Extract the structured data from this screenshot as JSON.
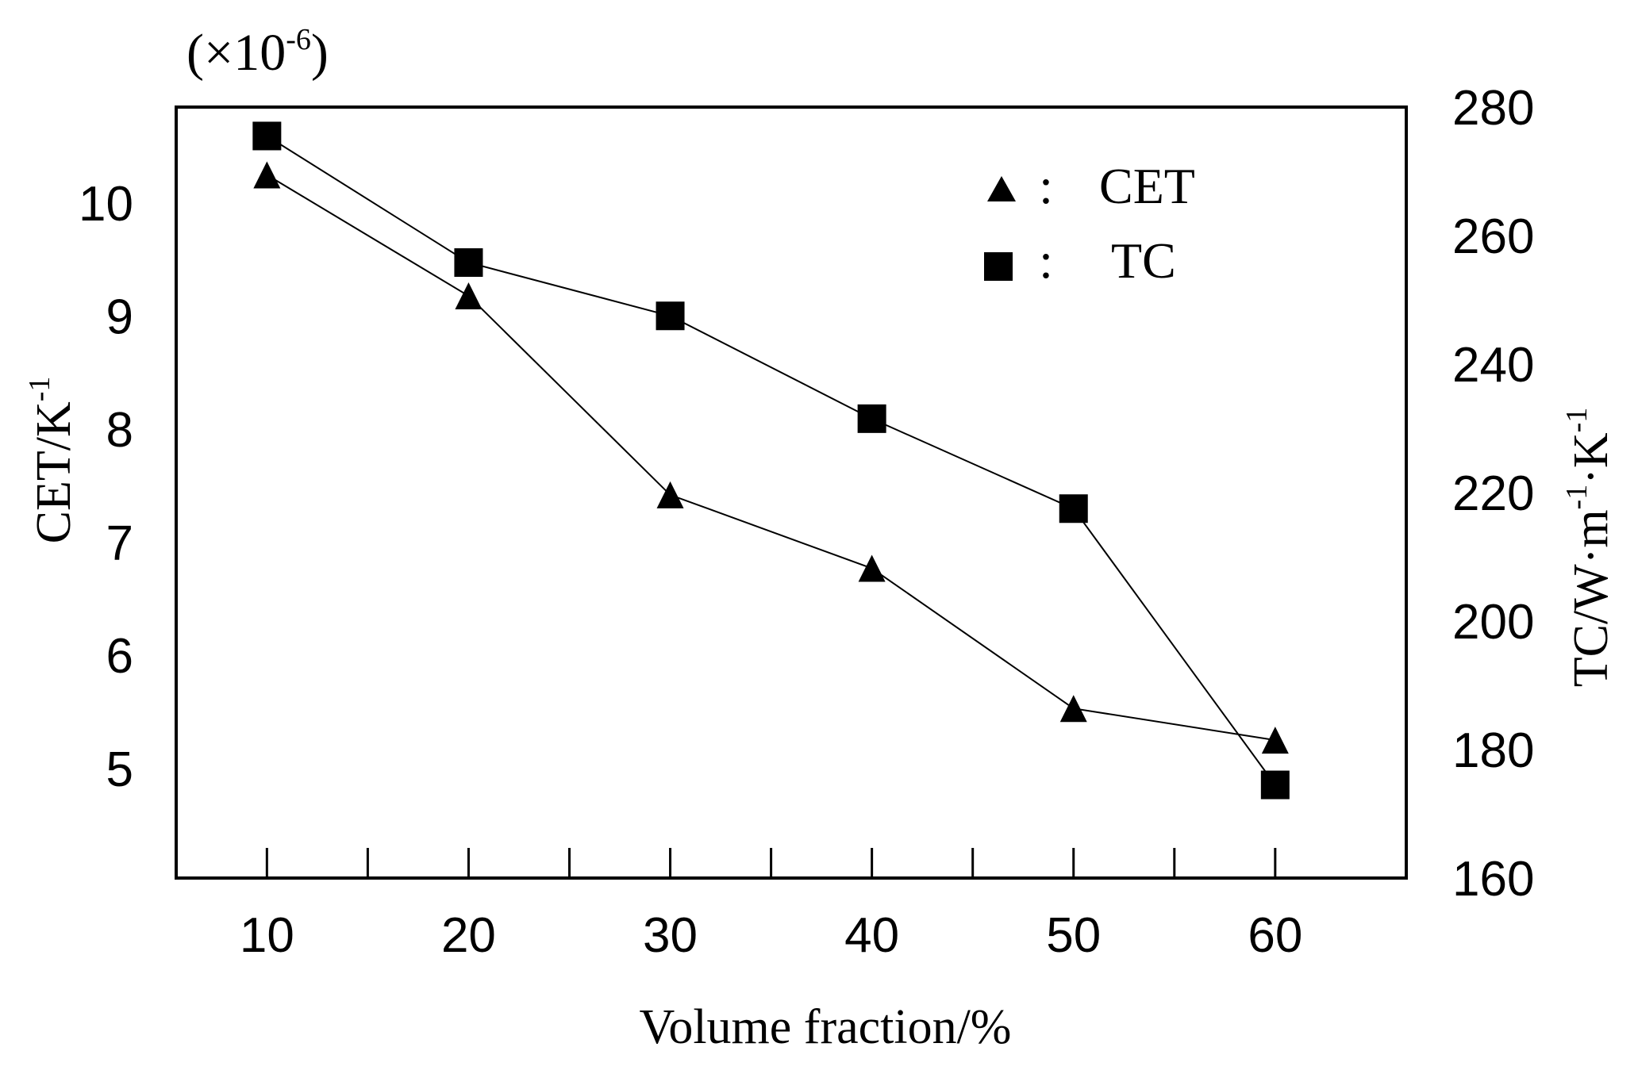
{
  "chart_data": {
    "type": "line",
    "title": "",
    "x": [
      10,
      20,
      30,
      40,
      50,
      60
    ],
    "xlabel": "Volume fraction/%",
    "xticks": [
      10,
      20,
      30,
      40,
      50,
      60
    ],
    "xlim": [
      5.5,
      66.5
    ],
    "y_left": {
      "label": "CET/K",
      "label_sup": "-1",
      "multiplier": "(×10",
      "multiplier_sup": "-6",
      "multiplier_close": ")",
      "ticks": [
        5,
        6,
        7,
        8,
        9,
        10
      ],
      "lim": [
        4.03,
        10.85
      ]
    },
    "y_right": {
      "label_parts": [
        "TC/W·m",
        "-1",
        "·K",
        "-1"
      ],
      "ticks": [
        160,
        180,
        200,
        220,
        240,
        260,
        280
      ],
      "lim": [
        160,
        280
      ]
    },
    "series": [
      {
        "name": "CET",
        "axis": "left",
        "marker": "triangle",
        "values": [
          10.25,
          9.18,
          7.42,
          6.77,
          5.53,
          5.25
        ]
      },
      {
        "name": "TC",
        "axis": "right",
        "marker": "square",
        "values": [
          275.5,
          255.8,
          247.5,
          231.5,
          217.5,
          174.5
        ]
      }
    ],
    "legend": {
      "position": "top-right",
      "separator": ":",
      "entries": [
        "CET",
        "TC"
      ]
    },
    "colors": {
      "line": "#000000",
      "marker": "#000000",
      "frame": "#000000"
    }
  }
}
